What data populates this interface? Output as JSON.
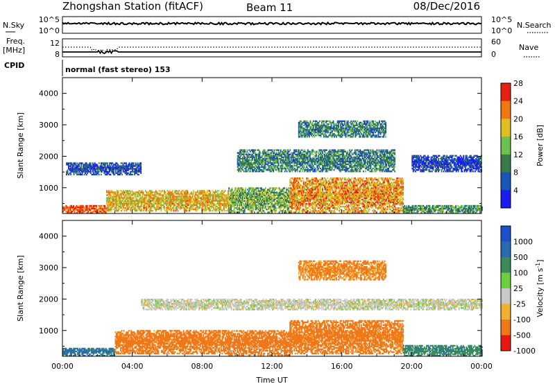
{
  "header": {
    "station": "Zhongshan Station (fitACF)",
    "beam": "Beam 11",
    "date": "08/Dec/2016"
  },
  "strip_panels": {
    "nsky": {
      "label": "N.Sky",
      "left_ticks": [
        "10^5",
        "10^0"
      ],
      "right_label": "N.Search",
      "right_ticks": [
        "10^5",
        "10^0"
      ]
    },
    "freq": {
      "label_line1": "Freq.",
      "label_line2": "[MHz]",
      "left_ticks": [
        "12",
        "8"
      ],
      "right_label": "Nave",
      "right_ticks": [
        "60",
        "0"
      ]
    },
    "cpid": {
      "label": "CPID",
      "text": "normal (fast stereo) 153"
    }
  },
  "chart_data": [
    {
      "type": "heatmap",
      "panel": "power",
      "ylabel": "Slant Range [km]",
      "xlabel": "",
      "x_range_hours": [
        0,
        24
      ],
      "x_ticks": [
        "00:00",
        "04:00",
        "08:00",
        "12:00",
        "16:00",
        "20:00",
        "00:00"
      ],
      "ylim": [
        180,
        4500
      ],
      "y_ticks": [
        1000,
        2000,
        3000,
        4000
      ],
      "colorbar": {
        "label": "Power [dB]",
        "ticks": [
          "4",
          "8",
          "12",
          "16",
          "20",
          "24",
          "28"
        ],
        "colors": [
          "#1c1cf0",
          "#1a55b8",
          "#3a7a4a",
          "#6cc050",
          "#e0c020",
          "#f07810",
          "#e82010"
        ]
      },
      "echo_regions": [
        {
          "t0": 0.0,
          "t1": 2.5,
          "r0": 180,
          "r1": 450,
          "value": 26
        },
        {
          "t0": 2.5,
          "t1": 9.5,
          "r0": 250,
          "r1": 900,
          "value": 20
        },
        {
          "t0": 9.5,
          "t1": 13.0,
          "r0": 200,
          "r1": 1000,
          "value": 14
        },
        {
          "t0": 13.0,
          "t1": 19.5,
          "r0": 200,
          "r1": 1300,
          "value": 22
        },
        {
          "t0": 19.5,
          "t1": 24.0,
          "r0": 180,
          "r1": 450,
          "value": 12
        },
        {
          "t0": 0.2,
          "t1": 4.5,
          "r0": 1400,
          "r1": 1800,
          "value": 6
        },
        {
          "t0": 10.0,
          "t1": 19.0,
          "r0": 1500,
          "r1": 2200,
          "value": 10
        },
        {
          "t0": 20.0,
          "t1": 24.0,
          "r0": 1500,
          "r1": 2000,
          "value": 5
        },
        {
          "t0": 13.5,
          "t1": 18.5,
          "r0": 2600,
          "r1": 3100,
          "value": 10
        }
      ]
    },
    {
      "type": "heatmap",
      "panel": "velocity",
      "ylabel": "Slant Range [km]",
      "xlabel": "Time UT",
      "x_range_hours": [
        0,
        24
      ],
      "x_ticks": [
        "00:00",
        "04:00",
        "08:00",
        "12:00",
        "16:00",
        "20:00",
        "00:00"
      ],
      "ylim": [
        180,
        4500
      ],
      "y_ticks": [
        1000,
        2000,
        3000,
        4000
      ],
      "colorbar": {
        "label": "Velocity [m s",
        "label_sup": "-1",
        "label_end": "]",
        "ticks": [
          "1000",
          "500",
          "100",
          "25",
          "-25",
          "-100",
          "-500",
          "-1000"
        ],
        "colors": [
          "#1a50c8",
          "#2a6ab0",
          "#3a8a5a",
          "#6ad040",
          "#c8c8c8",
          "#f0b030",
          "#f07818",
          "#e81810"
        ]
      },
      "echo_regions": [
        {
          "t0": 0.0,
          "t1": 3.0,
          "r0": 180,
          "r1": 450,
          "value": 300
        },
        {
          "t0": 3.0,
          "t1": 9.5,
          "r0": 250,
          "r1": 1000,
          "value": -400
        },
        {
          "t0": 9.5,
          "t1": 13.0,
          "r0": 200,
          "r1": 1000,
          "value": -500
        },
        {
          "t0": 13.0,
          "t1": 19.5,
          "r0": 250,
          "r1": 1300,
          "value": -400
        },
        {
          "t0": 19.5,
          "t1": 24.0,
          "r0": 180,
          "r1": 500,
          "value": 200
        },
        {
          "t0": 4.5,
          "t1": 24.0,
          "r0": 1650,
          "r1": 2000,
          "value": 0
        },
        {
          "t0": 13.5,
          "t1": 18.5,
          "r0": 2600,
          "r1": 3200,
          "value": -300
        }
      ]
    }
  ]
}
